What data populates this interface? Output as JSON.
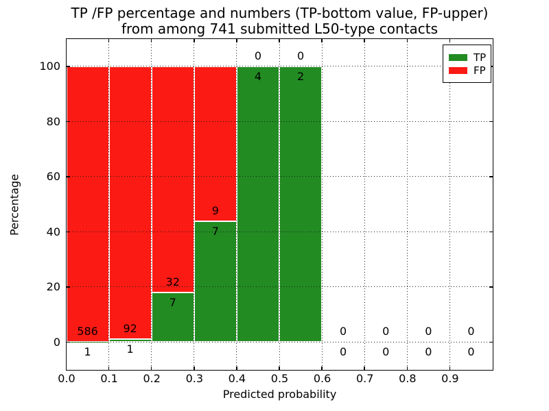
{
  "colors": {
    "tp_green": "#228b22",
    "fp_red": "#fc1a14",
    "text": "#000000",
    "background": "#ffffff",
    "bar_edge": "#ffffff",
    "grid": "#1a1a1a"
  },
  "chart_data": {
    "type": "bar",
    "stacked": true,
    "title_line1": "TP /FP percentage and numbers (TP-bottom value, FP-upper)",
    "title_line2": "from among 741 submitted L50-type contacts",
    "xlabel": "Predicted probability",
    "ylabel": "Percentage",
    "xlim": [
      0,
      1
    ],
    "ylim": [
      -10,
      110
    ],
    "bin_width": 0.1,
    "grid": "dotted, on top of bars",
    "xtick_values": [
      0,
      0.1,
      0.2,
      0.3,
      0.4,
      0.5,
      0.6,
      0.7,
      0.8,
      0.9
    ],
    "xtick_labels": [
      "0.0",
      "0.1",
      "0.2",
      "0.3",
      "0.4",
      "0.5",
      "0.6",
      "0.7",
      "0.8",
      "0.9"
    ],
    "ytick_values": [
      0,
      20,
      40,
      60,
      80,
      100
    ],
    "ytick_labels": [
      "0",
      "20",
      "40",
      "60",
      "80",
      "100"
    ],
    "total_contacts": 741,
    "bins": [
      {
        "x0": 0.0,
        "x1": 0.1,
        "tp": 1,
        "fp": 586
      },
      {
        "x0": 0.1,
        "x1": 0.2,
        "tp": 1,
        "fp": 92
      },
      {
        "x0": 0.2,
        "x1": 0.3,
        "tp": 7,
        "fp": 32
      },
      {
        "x0": 0.3,
        "x1": 0.4,
        "tp": 7,
        "fp": 9
      },
      {
        "x0": 0.4,
        "x1": 0.5,
        "tp": 4,
        "fp": 0
      },
      {
        "x0": 0.5,
        "x1": 0.6,
        "tp": 2,
        "fp": 0
      },
      {
        "x0": 0.6,
        "x1": 0.7,
        "tp": 0,
        "fp": 0
      },
      {
        "x0": 0.7,
        "x1": 0.8,
        "tp": 0,
        "fp": 0
      },
      {
        "x0": 0.8,
        "x1": 0.9,
        "tp": 0,
        "fp": 0
      },
      {
        "x0": 0.9,
        "x1": 1.0,
        "tp": 0,
        "fp": 0
      }
    ],
    "legend": {
      "position": "upper right",
      "entries": [
        {
          "label": "TP",
          "color": "#228b22"
        },
        {
          "label": "FP",
          "color": "#fc1a14"
        }
      ]
    }
  }
}
